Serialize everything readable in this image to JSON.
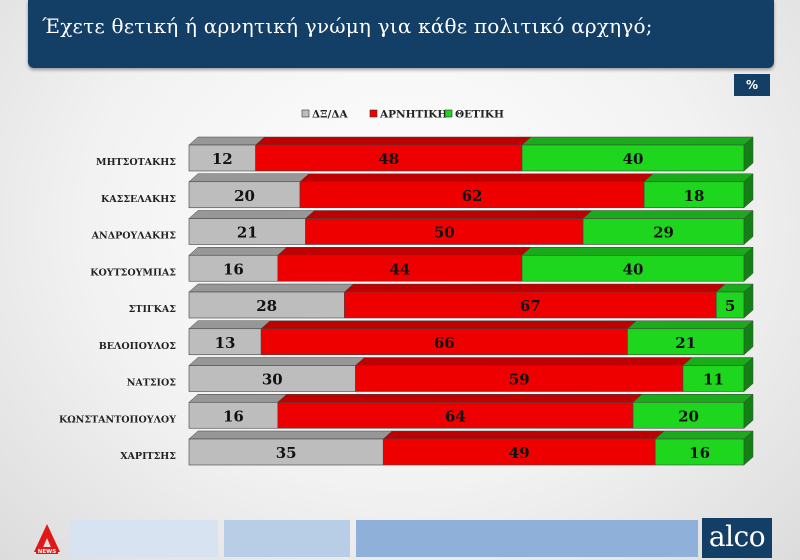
{
  "header": {
    "title": "Έχετε θετική ή αρνητική γνώμη για κάθε πολιτικό αρχηγό;"
  },
  "unit_badge": "%",
  "footer": {
    "alpha_logo_text": "NEWS",
    "brand": "alco"
  },
  "colors": {
    "neutral": "#bdbdbd",
    "negative": "#ee0000",
    "positive": "#1fd61f",
    "header": "#133e66"
  },
  "chart_data": {
    "type": "bar",
    "orientation": "horizontal",
    "stacked": true,
    "categories": [
      "ΜΗΤΣΟΤΑΚΗΣ",
      "ΚΑΣΣΕΛΑΚΗΣ",
      "ΑΝΔΡΟΥΛΑΚΗΣ",
      "ΚΟΥΤΣΟΥΜΠΑΣ",
      "ΣΤΙΓΚΑΣ",
      "ΒΕΛΟΠΟΥΛΟΣ",
      "ΝΑΤΣΙΟΣ",
      "ΚΩΝΣΤΑΝΤΟΠΟΥΛΟΥ",
      "ΧΑΡΙΤΣΗΣ"
    ],
    "series": [
      {
        "name": "ΔΞ/ΔΑ",
        "color": "#bdbdbd",
        "values": [
          12,
          20,
          21,
          16,
          28,
          13,
          30,
          16,
          35
        ]
      },
      {
        "name": "ΑΡΝΗΤΙΚΗ",
        "color": "#ee0000",
        "values": [
          48,
          62,
          50,
          44,
          67,
          66,
          59,
          64,
          49
        ]
      },
      {
        "name": "ΘΕΤΙΚΗ",
        "color": "#1fd61f",
        "values": [
          40,
          18,
          29,
          40,
          5,
          21,
          11,
          20,
          16
        ]
      }
    ],
    "xlim": [
      0,
      100
    ],
    "legend_position": "top",
    "grid": false
  }
}
